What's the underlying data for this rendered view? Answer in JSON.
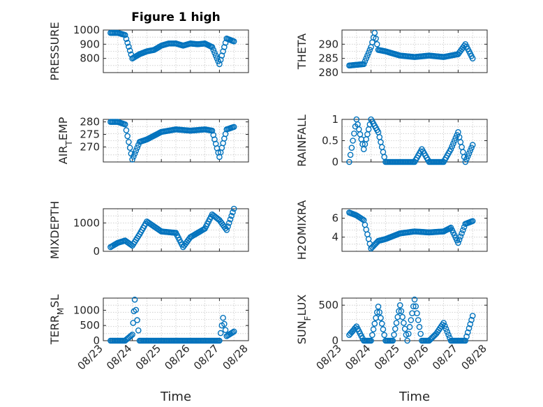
{
  "figure": {
    "title": "Figure 1 high",
    "xlabel": "Time",
    "x_ticks": [
      "08/23",
      "08/24",
      "08/25",
      "08/26",
      "08/27",
      "08/28"
    ]
  },
  "chart_data": [
    {
      "type": "scatter",
      "ylabel": "PRESSURE",
      "ylim": [
        700,
        1000
      ],
      "yticks": [
        800,
        900,
        1000
      ],
      "x": [
        "2023-08-23 06:00",
        "08-23 12:00",
        "08-23 18:00",
        "08-24 00:00",
        "08-24 06:00",
        "08-24 12:00",
        "08-24 18:00",
        "08-25 00:00",
        "08-25 06:00",
        "08-25 12:00",
        "08-25 18:00",
        "08-26 00:00",
        "08-26 06:00",
        "08-26 12:00",
        "08-26 18:00",
        "08-27 00:00",
        "08-27 06:00",
        "08-27 12:00"
      ],
      "values": [
        980,
        980,
        965,
        800,
        830,
        850,
        860,
        890,
        905,
        905,
        890,
        905,
        900,
        905,
        880,
        760,
        940,
        920
      ]
    },
    {
      "type": "scatter",
      "ylabel": "THETA",
      "ylim": [
        280,
        295
      ],
      "yticks": [
        280,
        285,
        290
      ],
      "x": [
        "08-23 06:00",
        "08-23 18:00",
        "08-24 00:00",
        "08-24 03:00",
        "08-24 06:00",
        "08-24 12:00",
        "08-25 00:00",
        "08-25 12:00",
        "08-26 00:00",
        "08-26 12:00",
        "08-27 00:00",
        "08-27 06:00",
        "08-27 12:00"
      ],
      "values": [
        282.5,
        283,
        289,
        294,
        288,
        287.5,
        286,
        285.5,
        286,
        285.5,
        286.5,
        290,
        285
      ]
    },
    {
      "type": "scatter",
      "ylabel": "AIR_TEMP",
      "ylim": [
        264,
        281
      ],
      "yticks": [
        270,
        275,
        280
      ],
      "x": [
        "08-23 06:00",
        "08-23 12:00",
        "08-23 18:00",
        "08-24 00:00",
        "08-24 06:00",
        "08-24 12:00",
        "08-25 00:00",
        "08-25 12:00",
        "08-26 00:00",
        "08-26 12:00",
        "08-26 18:00",
        "08-27 00:00",
        "08-27 06:00",
        "08-27 12:00"
      ],
      "values": [
        280,
        280,
        279,
        265,
        272,
        273,
        276,
        277,
        276.5,
        277,
        276.5,
        266,
        277,
        278
      ]
    },
    {
      "type": "scatter",
      "ylabel": "RAINFALL",
      "ylim": [
        0,
        1
      ],
      "yticks": [
        0,
        0.5,
        1
      ],
      "x": [
        "08-23 06:00",
        "08-23 12:00",
        "08-23 18:00",
        "08-24 00:00",
        "08-24 06:00",
        "08-24 12:00",
        "08-25 00:00",
        "08-25 12:00",
        "08-25 18:00",
        "08-26 00:00",
        "08-26 12:00",
        "08-26 18:00",
        "08-27 00:00",
        "08-27 06:00",
        "08-27 12:00"
      ],
      "values": [
        0,
        1,
        0.3,
        1,
        0.7,
        0,
        0,
        0,
        0.3,
        0,
        0,
        0.3,
        0.7,
        0,
        0.4
      ]
    },
    {
      "type": "scatter",
      "ylabel": "MIXDEPTH",
      "ylim": [
        0,
        1500
      ],
      "yticks": [
        0,
        1000
      ],
      "x": [
        "08-23 06:00",
        "08-23 12:00",
        "08-23 18:00",
        "08-24 00:00",
        "08-24 06:00",
        "08-24 12:00",
        "08-25 00:00",
        "08-25 12:00",
        "08-25 18:00",
        "08-26 00:00",
        "08-26 12:00",
        "08-26 18:00",
        "08-27 00:00",
        "08-27 06:00",
        "08-27 12:00"
      ],
      "values": [
        150,
        300,
        380,
        200,
        600,
        1050,
        700,
        650,
        150,
        500,
        800,
        1300,
        1100,
        750,
        1500
      ]
    },
    {
      "type": "scatter",
      "ylabel": "H2OMIXRA",
      "ylim": [
        2.5,
        7
      ],
      "yticks": [
        4,
        6
      ],
      "x": [
        "08-23 06:00",
        "08-23 12:00",
        "08-23 18:00",
        "08-24 00:00",
        "08-24 06:00",
        "08-24 12:00",
        "08-25 00:00",
        "08-25 12:00",
        "08-26 00:00",
        "08-26 12:00",
        "08-26 18:00",
        "08-27 00:00",
        "08-27 06:00",
        "08-27 12:00"
      ],
      "values": [
        6.6,
        6.3,
        5.8,
        2.8,
        3.6,
        3.8,
        4.4,
        4.6,
        4.5,
        4.6,
        5.0,
        3.4,
        5.4,
        5.7
      ]
    },
    {
      "type": "scatter",
      "ylabel": "TERR_MSL",
      "ylim": [
        0,
        1400
      ],
      "yticks": [
        0,
        500,
        1000
      ],
      "x": [
        "08-23 06:00",
        "08-23 12:00",
        "08-23 18:00",
        "08-24 00:00",
        "08-24 02:00",
        "08-24 06:00",
        "08-25 00:00",
        "08-25 12:00",
        "08-26 00:00",
        "08-26 12:00",
        "08-27 00:00",
        "08-27 03:00",
        "08-27 06:00",
        "08-27 12:00"
      ],
      "values": [
        0,
        0,
        0,
        200,
        1350,
        0,
        0,
        0,
        0,
        0,
        0,
        750,
        150,
        300
      ]
    },
    {
      "type": "scatter",
      "ylabel": "SUN_FLUX",
      "ylim": [
        0,
        600
      ],
      "yticks": [
        0,
        500
      ],
      "x": [
        "08-23 06:00",
        "08-23 12:00",
        "08-23 18:00",
        "08-24 00:00",
        "08-24 06:00",
        "08-24 12:00",
        "08-24 18:00",
        "08-25 00:00",
        "08-25 06:00",
        "08-25 12:00",
        "08-25 18:00",
        "08-26 00:00",
        "08-26 06:00",
        "08-26 12:00",
        "08-26 18:00",
        "08-27 00:00",
        "08-27 06:00",
        "08-27 12:00"
      ],
      "values": [
        80,
        200,
        0,
        0,
        480,
        0,
        0,
        500,
        0,
        580,
        0,
        0,
        100,
        250,
        0,
        0,
        0,
        350
      ]
    }
  ]
}
